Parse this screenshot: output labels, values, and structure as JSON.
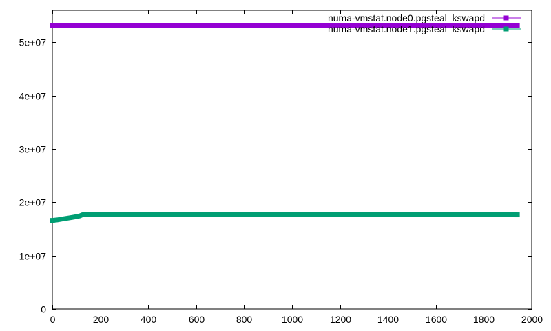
{
  "chart_data": {
    "type": "line",
    "title": "",
    "xlabel": "",
    "ylabel": "",
    "xlim": [
      0,
      2000
    ],
    "ylim": [
      0,
      56000000
    ],
    "x_ticks": [
      0,
      200,
      400,
      600,
      800,
      1000,
      1200,
      1400,
      1600,
      1800,
      2000
    ],
    "x_tick_labels": [
      "0",
      "200",
      "400",
      "600",
      "800",
      "1000",
      "1200",
      "1400",
      "1600",
      "1800",
      "2000"
    ],
    "y_ticks": [
      0,
      10000000,
      20000000,
      30000000,
      40000000,
      50000000
    ],
    "y_tick_labels": [
      "0",
      "1e+07",
      "2e+07",
      "3e+07",
      "4e+07",
      "5e+07"
    ],
    "grid": false,
    "legend_position": "top-right",
    "series": [
      {
        "name": "numa-vmstat.node0.pgsteal_kswapd",
        "color": "#9400d3",
        "marker": "square",
        "x": [
          0,
          1940
        ],
        "values": [
          53100000,
          53100000
        ]
      },
      {
        "name": "numa-vmstat.node1.pgsteal_kswapd",
        "color": "#009e73",
        "marker": "square",
        "x": [
          0,
          20,
          40,
          60,
          80,
          100,
          115,
          125,
          135,
          200,
          400,
          800,
          1200,
          1600,
          1940
        ],
        "values": [
          16600000,
          16700000,
          16850000,
          17000000,
          17150000,
          17300000,
          17450000,
          17650000,
          17650000,
          17650000,
          17650000,
          17650000,
          17650000,
          17650000,
          17650000
        ]
      }
    ]
  }
}
